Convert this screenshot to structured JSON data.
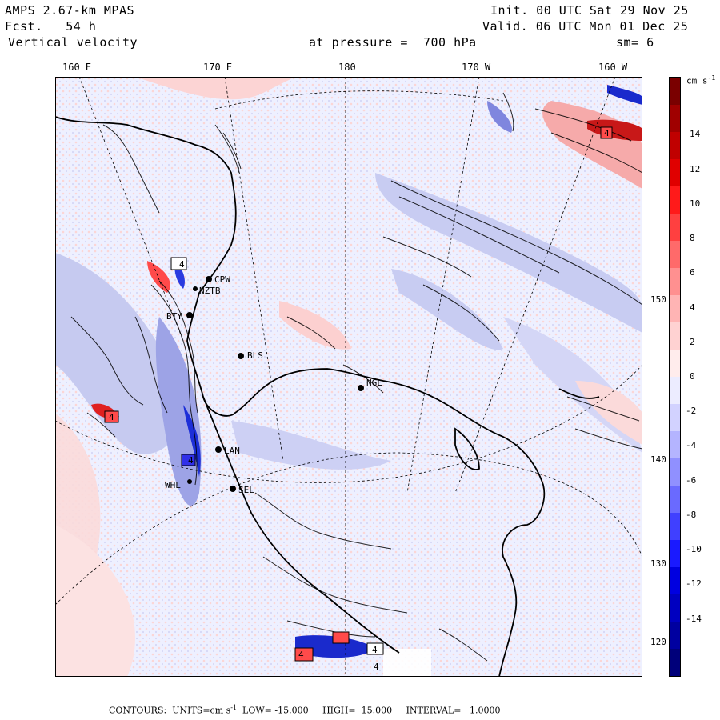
{
  "header": {
    "model": "AMPS 2.67-km MPAS",
    "forecast": "Fcst.   54 h",
    "field": "Vertical velocity",
    "level": "at pressure =  700 hPa",
    "init": "Init. 00 UTC Sat 29 Nov 25",
    "valid": "Valid. 06 UTC Mon 01 Dec 25",
    "smooth": "sm= 6"
  },
  "longitude_labels": [
    "160 E",
    "170 E",
    "180",
    "170 W",
    "160 W"
  ],
  "latitude_labels": [
    "150 W",
    "140 W",
    "130 W",
    "120 W"
  ],
  "stations": [
    {
      "id": "CPW"
    },
    {
      "id": "NZTB"
    },
    {
      "id": "BTY"
    },
    {
      "id": "BLS"
    },
    {
      "id": "NGL"
    },
    {
      "id": "LAN"
    },
    {
      "id": "WHL"
    },
    {
      "id": "SEL"
    }
  ],
  "extrema_markers": [
    "4",
    "4",
    "4",
    "4",
    "4",
    "4",
    "4"
  ],
  "colorbar": {
    "units_label": "cm s",
    "units_exponent": "-1",
    "ticks": [
      "14",
      "12",
      "10",
      "8",
      "6",
      "4",
      "2",
      "0",
      "-2",
      "-4",
      "-6",
      "-8",
      "-10",
      "-12",
      "-14"
    ],
    "colors": [
      "#7a0000",
      "#a00000",
      "#c00000",
      "#e00000",
      "#ff1a1a",
      "#ff4040",
      "#ff6a6a",
      "#ff9090",
      "#ffb4b4",
      "#ffd2d2",
      "#ffecec",
      "#ececff",
      "#d2d2ff",
      "#b4b4ff",
      "#9090ff",
      "#6a6aff",
      "#4040ff",
      "#1a1aff",
      "#0000e0",
      "#0000c0",
      "#0000a0",
      "#00007a"
    ]
  },
  "footer": {
    "contours": "CONTOURS:  UNITS=cm s",
    "exponent": "-1",
    "rest": "  LOW= -15.000     HIGH=  15.000     INTERVAL=   1.0000"
  },
  "colors": {
    "field_background": "#eef0ff",
    "positive_tint": "#fbd6d6",
    "negative_tint": "#c8ccf2",
    "contour": "#000000"
  }
}
